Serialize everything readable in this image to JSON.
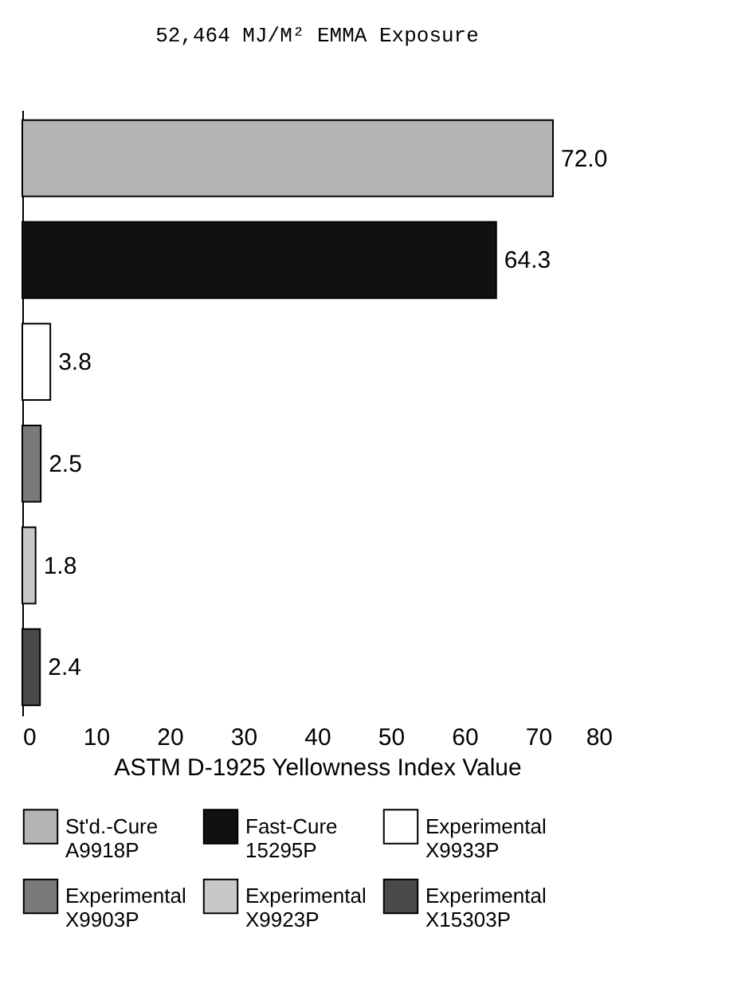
{
  "chart_data": {
    "type": "bar",
    "orientation": "horizontal",
    "title": "52,464 MJ/M² EMMA Exposure",
    "xlabel": "ASTM D-1925 Yellowness Index Value",
    "categories": [
      null,
      null,
      null,
      null,
      null,
      null
    ],
    "xlim": [
      0,
      80
    ],
    "xticks": [
      0,
      10,
      20,
      30,
      40,
      50,
      60,
      70,
      80
    ],
    "legend": "bottom",
    "grid": false,
    "series": [
      {
        "name": "St'd.-Cure A9918P",
        "color": "#b4b4b4",
        "values": [
          72.0,
          null,
          null,
          null,
          null,
          null
        ],
        "value_labels": [
          "72.0",
          null,
          null,
          null,
          null,
          null
        ]
      },
      {
        "name": "Fast-Cure 15295P",
        "color": "#111111",
        "values": [
          null,
          64.3,
          null,
          null,
          null,
          null
        ],
        "value_labels": [
          null,
          "64.3",
          null,
          null,
          null,
          null
        ]
      },
      {
        "name": "Experimental X9933P",
        "color": "#ffffff",
        "values": [
          null,
          null,
          3.8,
          null,
          null,
          null
        ],
        "value_labels": [
          null,
          null,
          "3.8",
          null,
          null,
          null
        ]
      },
      {
        "name": "Experimental X9903P",
        "color": "#7a7a7a",
        "values": [
          null,
          null,
          null,
          2.5,
          null,
          null
        ],
        "value_labels": [
          null,
          null,
          null,
          "2.5",
          null,
          null
        ]
      },
      {
        "name": "Experimental X9923P",
        "color": "#c8c8c8",
        "values": [
          null,
          null,
          null,
          null,
          1.8,
          null
        ],
        "value_labels": [
          null,
          null,
          null,
          null,
          "1.8",
          null
        ]
      },
      {
        "name": "Experimental X15303P",
        "color": "#4a4a4a",
        "values": [
          null,
          null,
          null,
          null,
          null,
          2.4
        ],
        "value_labels": [
          null,
          null,
          null,
          null,
          null,
          "2.4"
        ]
      }
    ]
  }
}
